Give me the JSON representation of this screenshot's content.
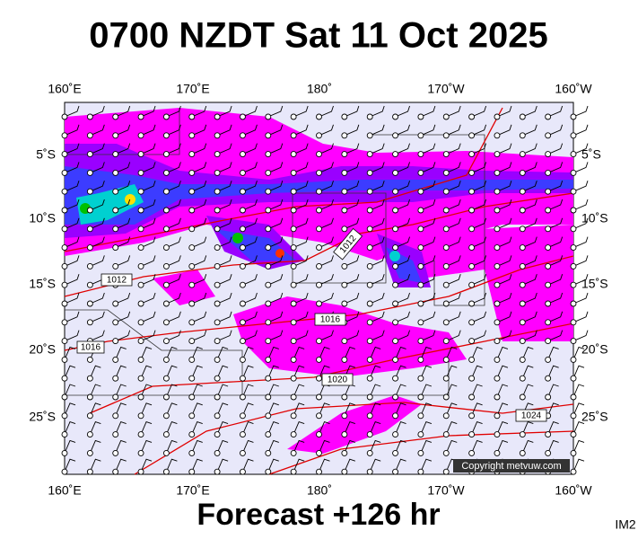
{
  "title": "0700 NZDT Sat 11 Oct 2025",
  "lon_labels": [
    "160˚E",
    "170˚E",
    "180˚",
    "170˚W",
    "160˚W"
  ],
  "lat_labels": [
    "5˚S",
    "10˚S",
    "15˚S",
    "20˚S",
    "25˚S"
  ],
  "isobar_labels": [
    "1012",
    "1012",
    "1016",
    "1016",
    "1020",
    "1024"
  ],
  "copyright": "Copyright metvuw.com",
  "footer": "Forecast +126 hr",
  "tag": "IM2"
}
